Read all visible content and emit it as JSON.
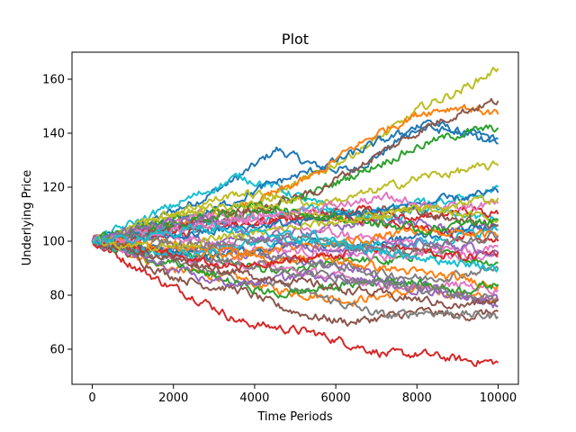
{
  "chart_data": {
    "type": "line",
    "title": "Plot",
    "xlabel": "Time Periods",
    "ylabel": "Underlying Price",
    "xlim": [
      -500,
      10500
    ],
    "ylim": [
      47,
      170
    ],
    "x_ticks": [
      0,
      2000,
      4000,
      6000,
      8000,
      10000
    ],
    "y_ticks": [
      60,
      80,
      100,
      120,
      140,
      160
    ],
    "grid": false,
    "legend": "none",
    "start_value": 100,
    "x_end": 10000,
    "series": [
      {
        "color": "#1f77b4",
        "values": [
          100,
          104,
          110,
          116,
          124,
          134,
          128,
          126,
          134,
          145,
          140,
          138
        ]
      },
      {
        "color": "#ff7f0e",
        "values": [
          100,
          96,
          90,
          88,
          86,
          82,
          80,
          78,
          80,
          82,
          80,
          78
        ]
      },
      {
        "color": "#2ca02c",
        "values": [
          100,
          98,
          96,
          94,
          92,
          88,
          90,
          94,
          92,
          96,
          94,
          92
        ]
      },
      {
        "color": "#d62728",
        "values": [
          100,
          92,
          84,
          78,
          70,
          68,
          66,
          62,
          58,
          58,
          56,
          55
        ]
      },
      {
        "color": "#9467bd",
        "values": [
          100,
          102,
          104,
          100,
          96,
          94,
          92,
          90,
          86,
          84,
          80,
          76
        ]
      },
      {
        "color": "#8c564b",
        "values": [
          100,
          95,
          88,
          84,
          82,
          76,
          72,
          70,
          72,
          74,
          72,
          74
        ]
      },
      {
        "color": "#e377c2",
        "values": [
          100,
          101,
          102,
          100,
          98,
          97,
          96,
          95,
          94,
          96,
          95,
          94
        ]
      },
      {
        "color": "#7f7f7f",
        "values": [
          100,
          97,
          94,
          90,
          86,
          84,
          80,
          76,
          72,
          74,
          73,
          72
        ]
      },
      {
        "color": "#bcbd22",
        "values": [
          100,
          103,
          108,
          112,
          110,
          118,
          124,
          132,
          140,
          150,
          156,
          164
        ]
      },
      {
        "color": "#17becf",
        "values": [
          100,
          106,
          112,
          118,
          124,
          120,
          114,
          110,
          108,
          112,
          110,
          108
        ]
      },
      {
        "color": "#1f77b4",
        "values": [
          100,
          102,
          106,
          110,
          116,
          122,
          126,
          132,
          138,
          142,
          140,
          136
        ]
      },
      {
        "color": "#ff7f0e",
        "values": [
          100,
          102,
          105,
          108,
          112,
          118,
          124,
          134,
          142,
          148,
          150,
          147
        ]
      },
      {
        "color": "#2ca02c",
        "values": [
          100,
          104,
          108,
          110,
          112,
          114,
          118,
          124,
          130,
          136,
          140,
          142
        ]
      },
      {
        "color": "#d62728",
        "values": [
          100,
          103,
          106,
          108,
          106,
          108,
          110,
          112,
          110,
          108,
          112,
          110
        ]
      },
      {
        "color": "#9467bd",
        "values": [
          100,
          98,
          96,
          98,
          100,
          102,
          104,
          106,
          108,
          106,
          104,
          106
        ]
      },
      {
        "color": "#8c564b",
        "values": [
          100,
          101,
          104,
          106,
          110,
          114,
          118,
          126,
          134,
          142,
          148,
          152
        ]
      },
      {
        "color": "#e377c2",
        "values": [
          100,
          97,
          95,
          93,
          92,
          90,
          88,
          86,
          84,
          82,
          84,
          82
        ]
      },
      {
        "color": "#7f7f7f",
        "values": [
          100,
          99,
          98,
          97,
          96,
          94,
          92,
          90,
          88,
          86,
          88,
          90
        ]
      },
      {
        "color": "#bcbd22",
        "values": [
          100,
          104,
          110,
          114,
          118,
          116,
          114,
          116,
          120,
          124,
          126,
          128
        ]
      },
      {
        "color": "#17becf",
        "values": [
          100,
          102,
          104,
          106,
          108,
          110,
          112,
          110,
          112,
          114,
          116,
          120
        ]
      },
      {
        "color": "#1f77b4",
        "values": [
          100,
          98,
          96,
          94,
          96,
          98,
          100,
          98,
          100,
          102,
          104,
          106
        ]
      },
      {
        "color": "#ff7f0e",
        "values": [
          100,
          99,
          97,
          96,
          94,
          93,
          94,
          92,
          90,
          88,
          86,
          84
        ]
      },
      {
        "color": "#2ca02c",
        "values": [
          100,
          96,
          92,
          88,
          84,
          80,
          82,
          84,
          86,
          84,
          82,
          84
        ]
      },
      {
        "color": "#d62728",
        "values": [
          100,
          101,
          102,
          104,
          106,
          108,
          110,
          108,
          106,
          104,
          102,
          100
        ]
      },
      {
        "color": "#9467bd",
        "values": [
          100,
          96,
          90,
          86,
          84,
          86,
          88,
          86,
          84,
          82,
          80,
          78
        ]
      },
      {
        "color": "#8c564b",
        "values": [
          100,
          102,
          104,
          108,
          112,
          110,
          108,
          110,
          112,
          110,
          108,
          106
        ]
      },
      {
        "color": "#e377c2",
        "values": [
          100,
          103,
          107,
          110,
          108,
          106,
          104,
          102,
          100,
          98,
          96,
          98
        ]
      },
      {
        "color": "#7f7f7f",
        "values": [
          100,
          98,
          96,
          94,
          92,
          90,
          88,
          86,
          84,
          82,
          80,
          78
        ]
      },
      {
        "color": "#bcbd22",
        "values": [
          100,
          105,
          110,
          112,
          114,
          112,
          110,
          108,
          110,
          112,
          110,
          108
        ]
      },
      {
        "color": "#17becf",
        "values": [
          100,
          97,
          95,
          96,
          98,
          100,
          102,
          100,
          98,
          100,
          102,
          104
        ]
      },
      {
        "color": "#1f77b4",
        "values": [
          100,
          102,
          101,
          103,
          105,
          106,
          108,
          110,
          112,
          114,
          116,
          118
        ]
      },
      {
        "color": "#ff7f0e",
        "values": [
          100,
          99,
          100,
          98,
          96,
          97,
          98,
          100,
          102,
          104,
          103,
          102
        ]
      },
      {
        "color": "#2ca02c",
        "values": [
          100,
          103,
          106,
          108,
          110,
          112,
          110,
          108,
          106,
          104,
          106,
          108
        ]
      },
      {
        "color": "#d62728",
        "values": [
          100,
          98,
          95,
          92,
          90,
          92,
          94,
          96,
          98,
          96,
          94,
          96
        ]
      },
      {
        "color": "#9467bd",
        "values": [
          100,
          104,
          106,
          108,
          104,
          100,
          98,
          96,
          98,
          100,
          98,
          96
        ]
      },
      {
        "color": "#8c564b",
        "values": [
          100,
          97,
          94,
          91,
          88,
          86,
          84,
          82,
          80,
          78,
          76,
          78
        ]
      },
      {
        "color": "#e377c2",
        "values": [
          100,
          101,
          103,
          106,
          108,
          110,
          112,
          114,
          116,
          114,
          112,
          114
        ]
      },
      {
        "color": "#7f7f7f",
        "values": [
          100,
          102,
          100,
          98,
          100,
          102,
          100,
          98,
          96,
          98,
          100,
          102
        ]
      },
      {
        "color": "#bcbd22",
        "values": [
          100,
          99,
          98,
          100,
          102,
          104,
          106,
          108,
          110,
          112,
          114,
          116
        ]
      },
      {
        "color": "#17becf",
        "values": [
          100,
          101,
          103,
          105,
          104,
          102,
          100,
          98,
          96,
          94,
          92,
          90
        ]
      }
    ]
  }
}
